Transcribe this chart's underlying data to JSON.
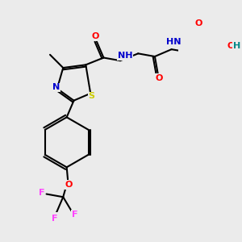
{
  "bg_color": "#ebebeb",
  "atom_colors": {
    "O": "#ff0000",
    "N": "#0000cc",
    "S": "#cccc00",
    "F": "#ff44ff",
    "C": "#000000",
    "H": "#008888"
  }
}
